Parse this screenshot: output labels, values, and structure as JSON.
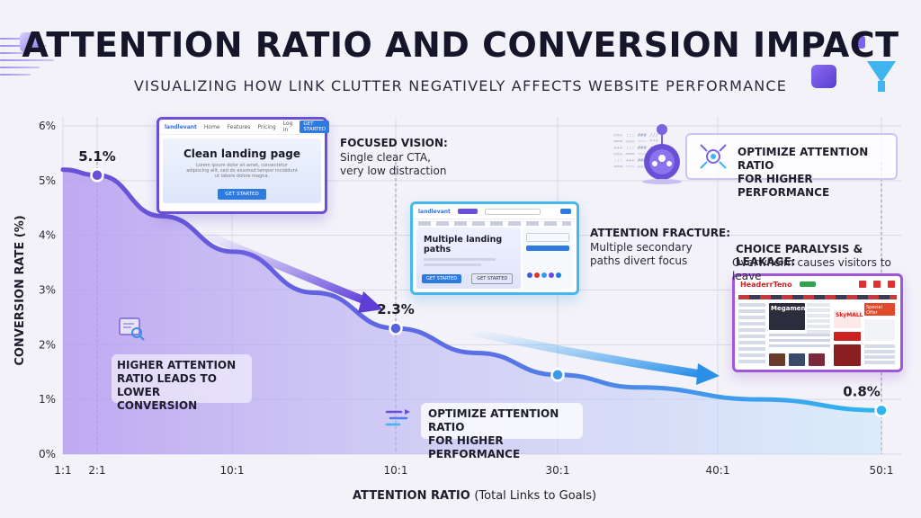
{
  "title": "ATTENTION RATIO AND CONVERSION IMPACT",
  "subtitle": "VISUALIZING HOW LINK CLUTTER NEGATIVELY AFFECTS WEBSITE PERFORMANCE",
  "chart_data": {
    "type": "area",
    "xlabel": "ATTENTION RATIO",
    "xlabel_note": "(Total Links to Goals)",
    "ylabel": "CONVERSION RATE (%)",
    "ylim": [
      0,
      6
    ],
    "y_ticks": [
      "0%",
      "1%",
      "2%",
      "3%",
      "4%",
      "5%",
      "6%"
    ],
    "x_ticks": [
      "1:1",
      "2:1",
      "10:1",
      "10:1",
      "30:1",
      "40:1",
      "50:1"
    ],
    "grid": true,
    "markers": [
      {
        "x": "2:1",
        "y": 5.1,
        "label": "5.1%"
      },
      {
        "x": "10:1",
        "y": 2.3,
        "label": "2.3%"
      },
      {
        "x": "30:1",
        "y": 1.45,
        "label": ""
      },
      {
        "x": "50:1",
        "y": 0.8,
        "label": "0.8%"
      }
    ],
    "curve_y": [
      5.2,
      5.1,
      4.35,
      3.7,
      2.95,
      2.3,
      1.85,
      1.45,
      1.22,
      1.0,
      0.8
    ]
  },
  "annotations": {
    "focused": {
      "title": "FOCUSED VISION:",
      "line1": "Single clear CTA,",
      "line2": "very low distraction"
    },
    "fracture": {
      "title": "ATTENTION FRACTURE:",
      "line1": "Multiple secondary",
      "line2": "paths divert focus"
    },
    "paralysis": {
      "title": "CHOICE PARALYSIS & LEAKAGE:",
      "line1": "Overwhelm causes visitors to leave"
    },
    "left_note": {
      "line1": "HIGHER ATTENTION",
      "line2": "RATIO LEADS TO LOWER",
      "line3": "CONVERSION"
    },
    "optimize_top": {
      "line1": "OPTIMIZE ATTENTION RATIO",
      "line2": "FOR HIGHER PERFORMANCE"
    },
    "optimize_bottom": {
      "line1": "OPTIMIZE ATTENTION RATIO",
      "line2": "FOR HIGHER PERFORMANCE"
    }
  },
  "landing1": {
    "logo": "landlevant",
    "nav": [
      "Home",
      "Features",
      "Pricing",
      "Log in"
    ],
    "cta": "GET STARTED",
    "heading": "Clean landing page",
    "para": "Lorem ipsum dolor sit amet, consectetur adipiscing elit, sed do eiusmod tempor incididunt ut labore dolore magna.",
    "button": "GET STARTED"
  },
  "landing2": {
    "logo": "landlevant",
    "heading": "Multiple landing paths",
    "btn1": "GET STARTED",
    "btn2": "GET STARTED"
  },
  "landing3": {
    "logo": "HeaderrTeno",
    "menu": "Megamen",
    "ad1": "SkyMALL",
    "ad2": "Special Offer"
  },
  "colors": {
    "purple": "#6b4fd6",
    "cyan": "#3fb4ef",
    "violet": "#9f59d6"
  }
}
